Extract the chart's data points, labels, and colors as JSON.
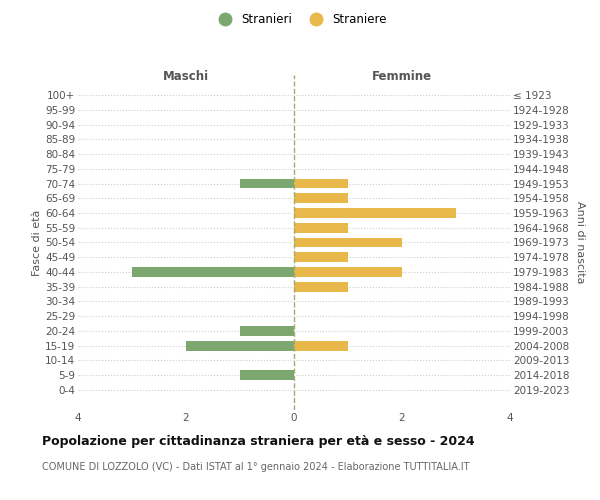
{
  "age_groups": [
    "100+",
    "95-99",
    "90-94",
    "85-89",
    "80-84",
    "75-79",
    "70-74",
    "65-69",
    "60-64",
    "55-59",
    "50-54",
    "45-49",
    "40-44",
    "35-39",
    "30-34",
    "25-29",
    "20-24",
    "15-19",
    "10-14",
    "5-9",
    "0-4"
  ],
  "birth_years": [
    "≤ 1923",
    "1924-1928",
    "1929-1933",
    "1934-1938",
    "1939-1943",
    "1944-1948",
    "1949-1953",
    "1954-1958",
    "1959-1963",
    "1964-1968",
    "1969-1973",
    "1974-1978",
    "1979-1983",
    "1984-1988",
    "1989-1993",
    "1994-1998",
    "1999-2003",
    "2004-2008",
    "2009-2013",
    "2014-2018",
    "2019-2023"
  ],
  "maschi": [
    0,
    0,
    0,
    0,
    0,
    0,
    1,
    0,
    0,
    0,
    0,
    0,
    3,
    0,
    0,
    0,
    1,
    2,
    0,
    1,
    0
  ],
  "femmine": [
    0,
    0,
    0,
    0,
    0,
    0,
    1,
    1,
    3,
    1,
    2,
    1,
    2,
    1,
    0,
    0,
    0,
    1,
    0,
    0,
    0
  ],
  "color_maschi": "#7ca870",
  "color_femmine": "#e8b84b",
  "title": "Popolazione per cittadinanza straniera per età e sesso - 2024",
  "subtitle": "COMUNE DI LOZZOLO (VC) - Dati ISTAT al 1° gennaio 2024 - Elaborazione TUTTITALIA.IT",
  "xlabel_left": "Maschi",
  "xlabel_right": "Femmine",
  "ylabel_left": "Fasce di età",
  "ylabel_right": "Anni di nascita",
  "legend_maschi": "Stranieri",
  "legend_femmine": "Straniere",
  "xlim": 4,
  "background_color": "#ffffff",
  "grid_color": "#cccccc",
  "title_fontsize": 9,
  "subtitle_fontsize": 7,
  "tick_fontsize": 7.5,
  "label_fontsize": 8.5
}
